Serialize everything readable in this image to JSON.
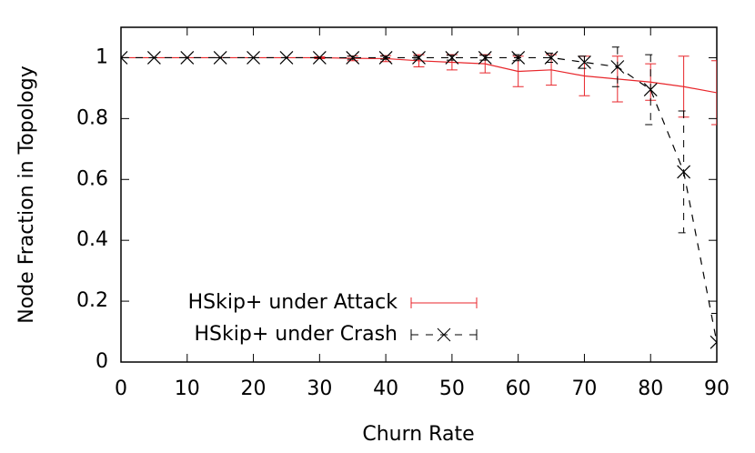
{
  "chart_data": {
    "type": "line",
    "x_label": "Churn Rate",
    "y_label": "Node Fraction in Topology",
    "x": [
      0,
      5,
      10,
      15,
      20,
      25,
      30,
      35,
      40,
      45,
      50,
      55,
      60,
      65,
      70,
      75,
      80,
      85,
      90
    ],
    "series": [
      {
        "name": "HSkip+ under Attack",
        "color": "#e8262b",
        "line_style": "solid",
        "marker": "plus",
        "values": [
          1,
          1,
          1,
          1,
          1,
          1,
          1,
          0.998,
          0.997,
          0.99,
          0.985,
          0.98,
          0.955,
          0.96,
          0.94,
          0.93,
          0.92,
          0.905,
          0.885
        ],
        "errors": [
          0,
          0,
          0,
          0,
          0,
          0,
          0.003,
          0.008,
          0.01,
          0.02,
          0.025,
          0.03,
          0.05,
          0.05,
          0.065,
          0.075,
          0.06,
          0.1,
          0.105
        ]
      },
      {
        "name": "HSkip+ under Crash",
        "color": "#000000",
        "line_style": "dashed",
        "marker": "x",
        "values": [
          1,
          1,
          1,
          1,
          1,
          1,
          1,
          1,
          1,
          1,
          1,
          1,
          1,
          1,
          0.985,
          0.97,
          0.895,
          0.625,
          0.065
        ],
        "errors": [
          0,
          0,
          0,
          0,
          0,
          0,
          0,
          0.005,
          0.005,
          0.005,
          0.008,
          0.008,
          0.01,
          0.015,
          0.02,
          0.065,
          0.115,
          0.2,
          0.095
        ]
      }
    ],
    "xlim": [
      0,
      90
    ],
    "xticks": [
      0,
      10,
      20,
      30,
      40,
      50,
      60,
      70,
      80,
      90
    ],
    "ylim": [
      0,
      1.1
    ],
    "yticks": [
      0,
      0.2,
      0.4,
      0.6,
      0.8,
      1
    ],
    "legend": "lower-left"
  }
}
